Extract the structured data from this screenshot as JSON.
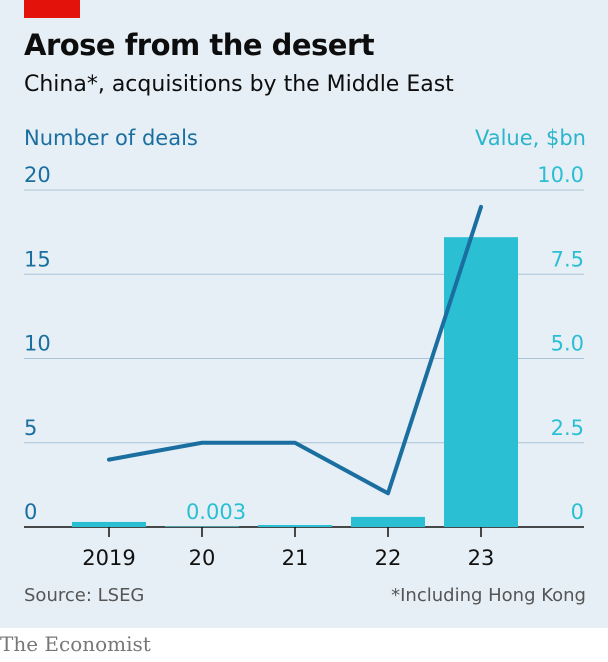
{
  "header": {
    "title": "Arose from the desert",
    "subtitle": "China*, acquisitions by the Middle East"
  },
  "footer": {
    "source": "Source: LSEG",
    "footnote": "*Including Hong Kong",
    "brand": "The Economist"
  },
  "colors": {
    "accent_red": "#e3120b",
    "line": "#1a6fa0",
    "bar": "#2bbfd4",
    "gridline": "#a9c4d6",
    "background": "#e6eff5"
  },
  "chart_data": {
    "type": "bar",
    "categories": [
      "2019",
      "20",
      "21",
      "22",
      "23"
    ],
    "series": [
      {
        "name": "Number of deals",
        "type": "line",
        "axis": "left",
        "values": [
          4,
          5,
          5,
          2,
          19
        ]
      },
      {
        "name": "Value, $bn",
        "type": "bar",
        "axis": "right",
        "values": [
          0.15,
          0.003,
          0.06,
          0.3,
          8.6
        ]
      }
    ],
    "annotations": [
      {
        "category": "20",
        "text": "0.003"
      }
    ],
    "y_left": {
      "label": "Number of deals",
      "ylim": [
        0,
        20
      ],
      "ticks": [
        "0",
        "5",
        "10",
        "15",
        "20"
      ]
    },
    "y_right": {
      "label": "Value, $bn",
      "ylim": [
        0,
        10
      ],
      "ticks": [
        "0",
        "2.5",
        "5.0",
        "7.5",
        "10.0"
      ]
    },
    "grid": true,
    "legend": "none"
  }
}
